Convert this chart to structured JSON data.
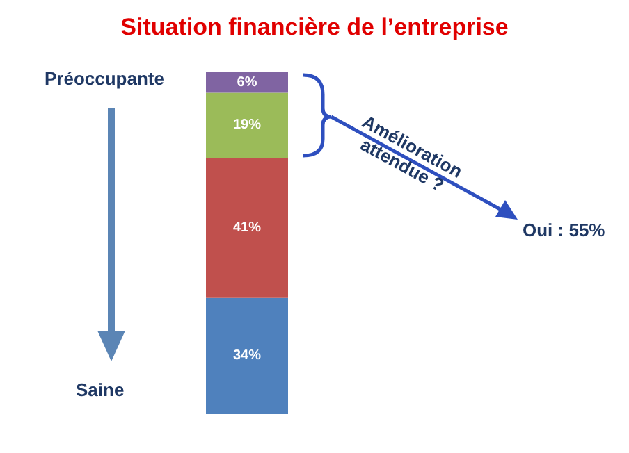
{
  "chart_data": {
    "type": "bar",
    "title": "Situation financière de l’entreprise",
    "categories": [
      null
    ],
    "stacked": true,
    "series": [
      {
        "color": "#4f81bd",
        "values": [
          34
        ],
        "value_labels": [
          "34%"
        ]
      },
      {
        "color": "#c0504d",
        "values": [
          41
        ],
        "value_labels": [
          "41%"
        ]
      },
      {
        "color": "#9bbb59",
        "values": [
          19
        ],
        "value_labels": [
          "19%"
        ]
      },
      {
        "color": "#8064a2",
        "values": [
          6
        ],
        "value_labels": [
          "6%"
        ]
      }
    ],
    "annotations": [
      "Préoccupante",
      "Saine",
      "Amélioration\nattendue ?",
      "Oui : 55%"
    ]
  }
}
